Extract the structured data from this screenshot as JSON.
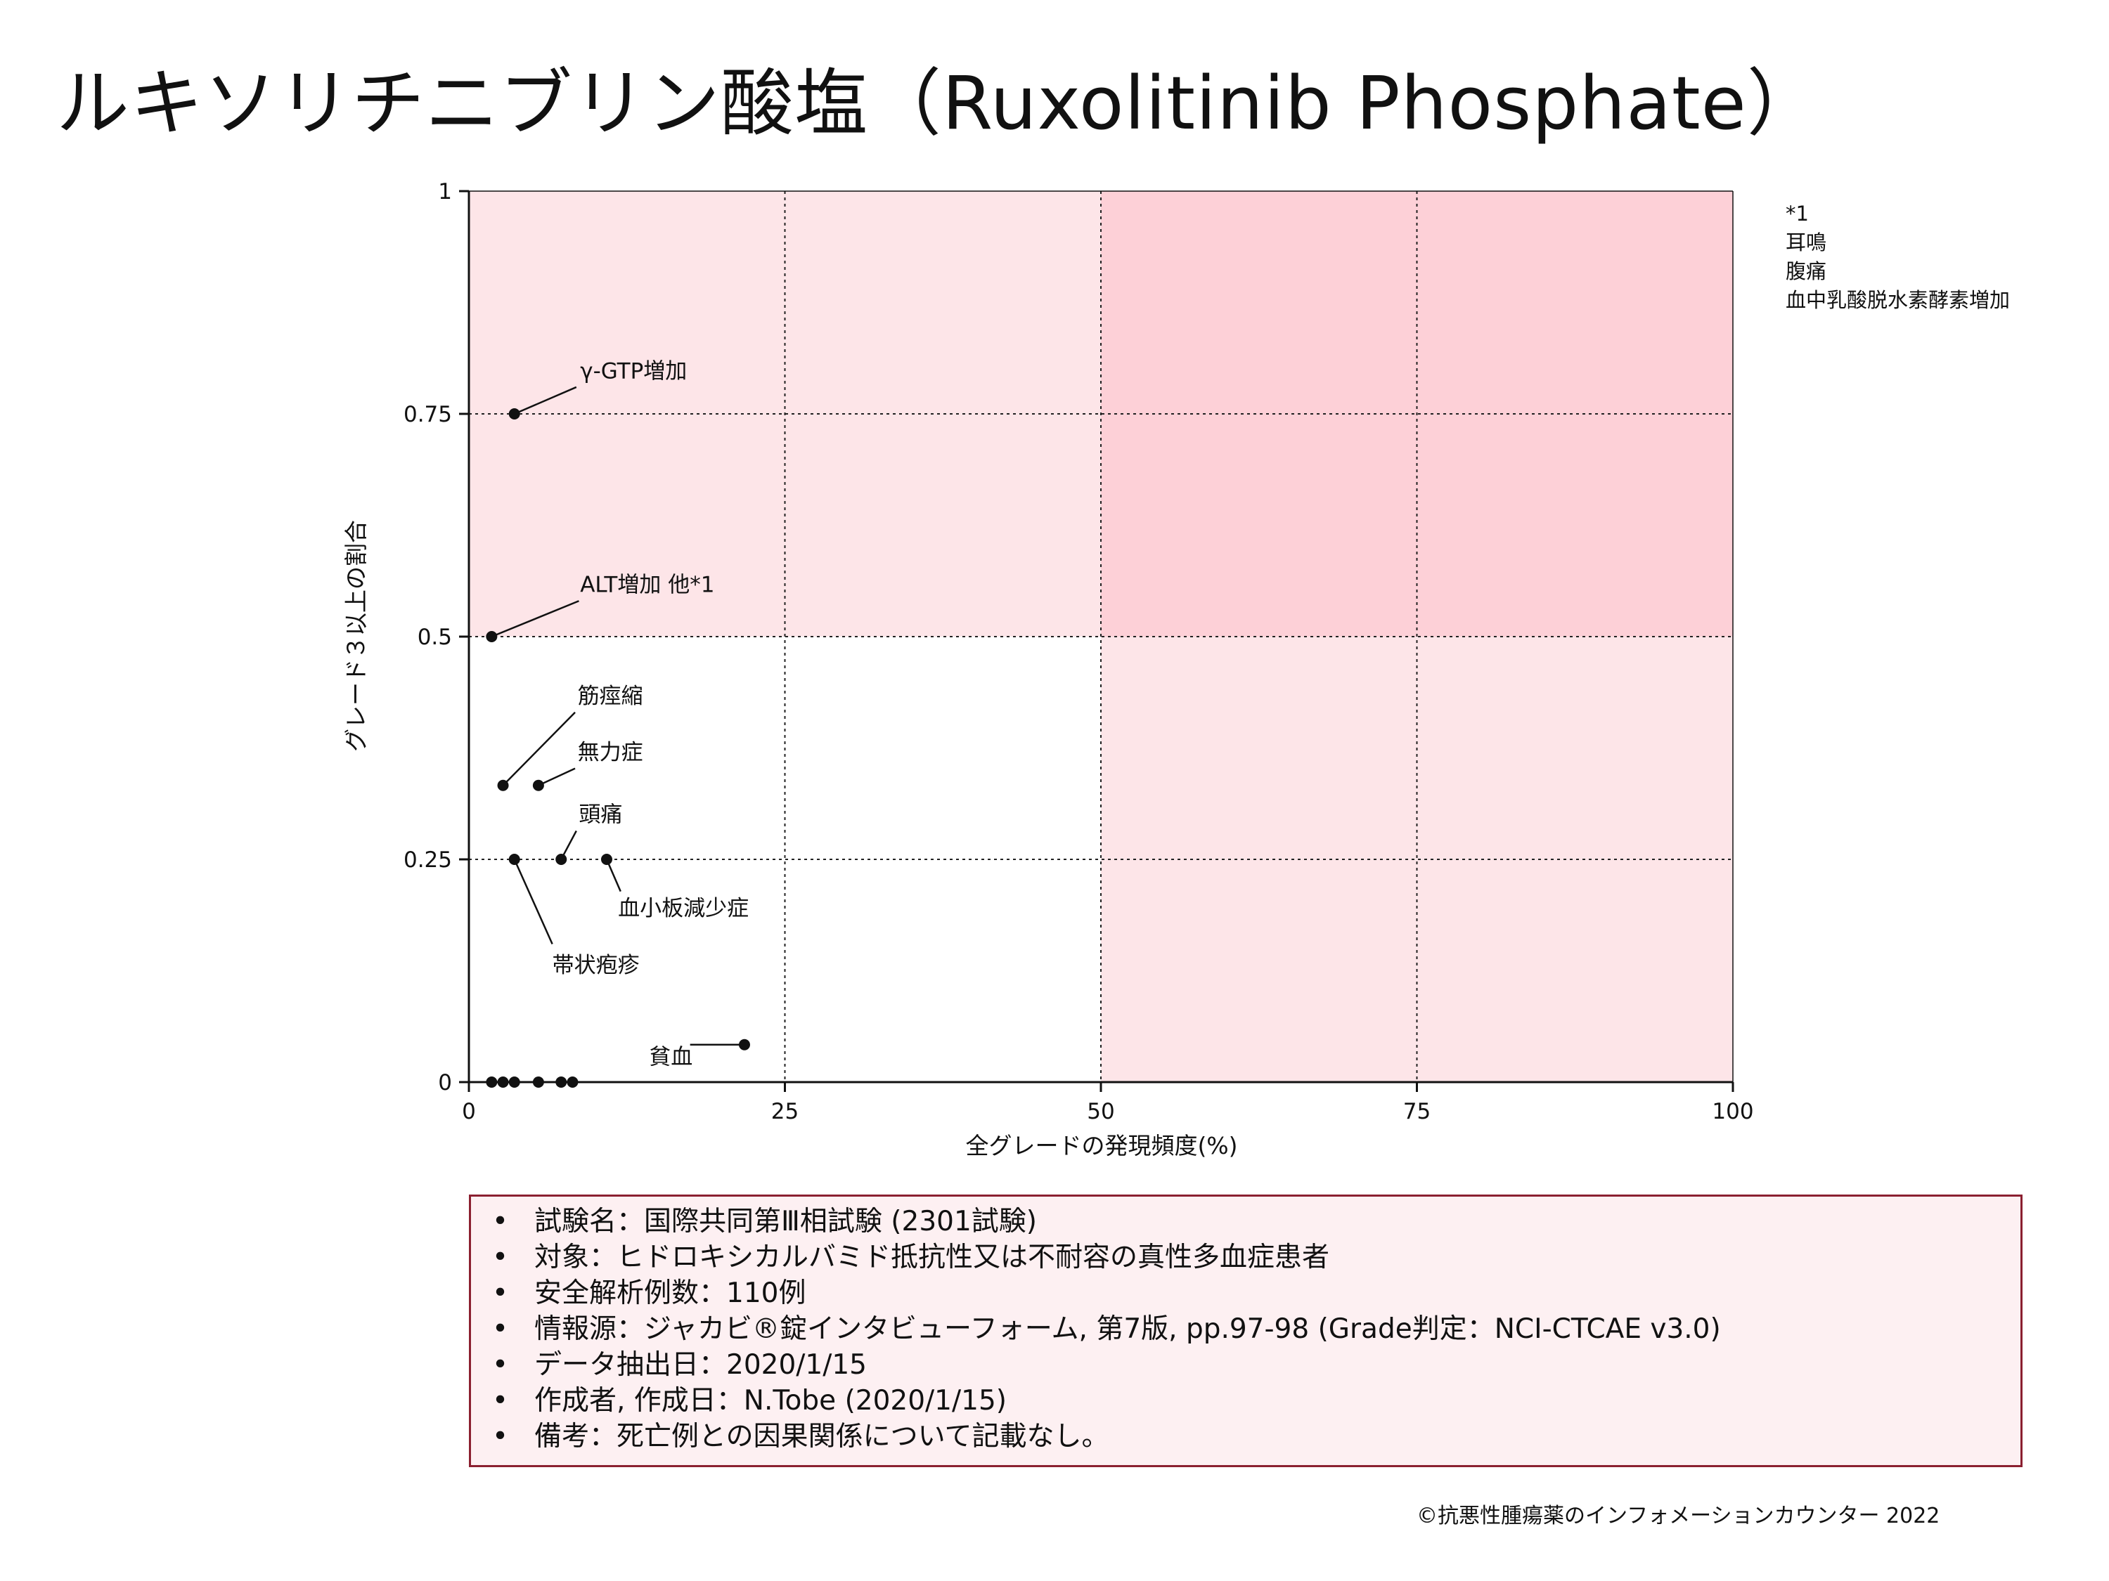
{
  "title": "ルキソリチニブリン酸塩（Ruxolitinib Phosphate）",
  "colors": {
    "region_light": "#fde5e8",
    "region_dark": "#fdd0d7",
    "box_border": "#8b2030",
    "box_fill": "#fdf0f2"
  },
  "chart_data": {
    "type": "scatter",
    "xlabel": "全グレードの発現頻度(%)",
    "ylabel": "グレード３以上の割合",
    "xlim": [
      0,
      100
    ],
    "ylim": [
      0,
      1
    ],
    "xticks": [
      0,
      25,
      50,
      75,
      100
    ],
    "yticks": [
      0,
      0.25,
      0.5,
      0.75,
      1
    ],
    "yticklabels": [
      "0",
      "0.25",
      "0.5",
      "0.75",
      "1"
    ],
    "grid": true,
    "background_regions": [
      {
        "x": [
          0,
          100
        ],
        "y": [
          0.5,
          1
        ],
        "shade": "light"
      },
      {
        "x": [
          50,
          100
        ],
        "y": [
          0,
          1
        ],
        "shade": "light"
      },
      {
        "x": [
          50,
          100
        ],
        "y": [
          0.5,
          1
        ],
        "shade": "dark"
      }
    ],
    "points": [
      {
        "x": 3.6,
        "y": 0.75,
        "label": "γ-GTP増加"
      },
      {
        "x": 1.8,
        "y": 0.5,
        "label": "ALT増加 他*1"
      },
      {
        "x": 2.7,
        "y": 0.333,
        "label": "筋痙縮"
      },
      {
        "x": 5.5,
        "y": 0.333,
        "label": "無力症"
      },
      {
        "x": 7.3,
        "y": 0.25,
        "label": "頭痛"
      },
      {
        "x": 10.9,
        "y": 0.25,
        "label": "血小板減少症"
      },
      {
        "x": 3.6,
        "y": 0.25,
        "label": "帯状疱疹"
      },
      {
        "x": 21.8,
        "y": 0.042,
        "label": "貧血"
      },
      {
        "x": 1.8,
        "y": 0,
        "label": ""
      },
      {
        "x": 2.7,
        "y": 0,
        "label": ""
      },
      {
        "x": 3.6,
        "y": 0,
        "label": ""
      },
      {
        "x": 5.5,
        "y": 0,
        "label": ""
      },
      {
        "x": 7.3,
        "y": 0,
        "label": ""
      },
      {
        "x": 8.2,
        "y": 0,
        "label": ""
      }
    ],
    "annotations": [
      {
        "text": "γ-GTP増加",
        "point": 0,
        "tx": 8.8,
        "ty": 0.79,
        "anchor": "start",
        "line_end": [
          8.5,
          0.78
        ]
      },
      {
        "text": "ALT増加 他*1",
        "point": 1,
        "tx": 8.8,
        "ty": 0.55,
        "anchor": "start",
        "line_end": [
          8.7,
          0.54
        ]
      },
      {
        "text": "筋痙縮",
        "point": 2,
        "tx": 8.6,
        "ty": 0.425,
        "anchor": "start",
        "line_end": [
          8.4,
          0.415
        ]
      },
      {
        "text": "無力症",
        "point": 3,
        "tx": 8.6,
        "ty": 0.362,
        "anchor": "start",
        "line_end": [
          8.4,
          0.352
        ]
      },
      {
        "text": "頭痛",
        "point": 4,
        "tx": 8.7,
        "ty": 0.292,
        "anchor": "start",
        "line_end": [
          8.5,
          0.282
        ]
      },
      {
        "text": "血小板減少症",
        "point": 5,
        "tx": 11.8,
        "ty": 0.187,
        "anchor": "start",
        "line_end": [
          12.0,
          0.214
        ]
      },
      {
        "text": "帯状疱疹",
        "point": 6,
        "tx": 6.6,
        "ty": 0.123,
        "anchor": "start",
        "line_end": [
          6.6,
          0.155
        ]
      },
      {
        "text": "貧血",
        "point": 7,
        "tx": 17.7,
        "ty": 0.02,
        "anchor": "end",
        "line_end": [
          17.5,
          0.042
        ]
      }
    ]
  },
  "footnote": [
    "*1",
    "耳鳴",
    "腹痛",
    "血中乳酸脱水素酵素増加"
  ],
  "info": [
    "試験名：国際共同第Ⅲ相試験 (2301試験)",
    "対象：ヒドロキシカルバミド抵抗性又は不耐容の真性多血症患者",
    "安全解析例数：110例",
    "情報源：ジャカビ®錠インタビューフォーム, 第7版, pp.97-98 (Grade判定：NCI-CTCAE v3.0)",
    "データ抽出日：2020/1/15",
    "作成者, 作成日：N.Tobe (2020/1/15)",
    "備考：死亡例との因果関係について記載なし。"
  ],
  "copyright": "©抗悪性腫瘍薬のインフォメーションカウンター 2022"
}
